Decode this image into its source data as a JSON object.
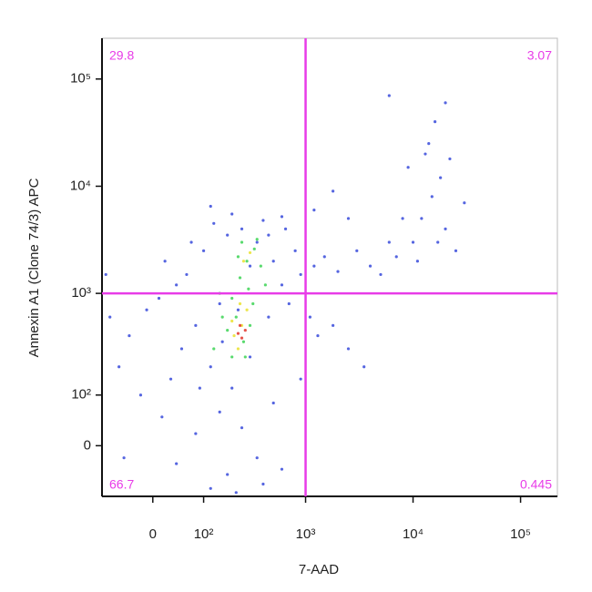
{
  "chart_data": {
    "type": "scatter",
    "x_label": "7-AAD",
    "y_label": "Annexin A1 (Clone 74/3) APC",
    "scale": "biexponential",
    "xlim": [
      -100,
      220000
    ],
    "ylim": [
      -100,
      240000
    ],
    "xticks": [
      0,
      {
        "value": 100,
        "label": "10²"
      },
      {
        "value": 1000,
        "label": "10³"
      },
      {
        "value": 10000,
        "label": "10⁴"
      },
      {
        "value": 100000,
        "label": "10⁵"
      }
    ],
    "yticks": [
      0,
      {
        "value": 100,
        "label": "10²"
      },
      {
        "value": 1000,
        "label": "10³"
      },
      {
        "value": 10000,
        "label": "10⁴"
      },
      {
        "value": 100000,
        "label": "10⁵"
      }
    ],
    "gates": {
      "x": 1000,
      "y": 1000,
      "color": "#e83ce8"
    },
    "quadrants": {
      "top_left": 29.8,
      "top_right": 3.07,
      "bottom_left": 66.7,
      "bottom_right": 0.445
    },
    "series": [
      {
        "color": "#2a3fd8",
        "x": [
          50,
          80,
          120,
          150,
          30,
          -40,
          -80,
          10,
          60,
          100,
          180,
          250,
          350,
          500,
          600,
          700,
          450,
          300,
          200,
          150,
          250,
          350,
          180,
          120,
          80,
          40,
          -20,
          -60,
          -90,
          20,
          70,
          130,
          400,
          650,
          800,
          900,
          1200,
          1500,
          2000,
          3000,
          4000,
          5000,
          6000,
          1100,
          1300,
          1800,
          2500,
          3500,
          900,
          500,
          600,
          400,
          220,
          300,
          450,
          230,
          160,
          90,
          15,
          -50,
          -10,
          40,
          200,
          120,
          600,
          10000,
          12000,
          15000,
          20000,
          25000,
          18000,
          9000,
          14000,
          16000,
          20000,
          7000,
          30000,
          11000,
          13000,
          8000,
          22000,
          17000,
          6000,
          1200,
          2500,
          1800
        ],
        "values": [
          300,
          500,
          200,
          800,
          150,
          400,
          600,
          900,
          1500,
          2500,
          3500,
          4000,
          3000,
          2000,
          1200,
          800,
          600,
          250,
          120,
          60,
          30,
          -20,
          -50,
          -80,
          20,
          -30,
          100,
          200,
          1500,
          2000,
          3000,
          4500,
          4800,
          4000,
          2500,
          1500,
          1800,
          2200,
          1600,
          2500,
          1800,
          1500,
          3000,
          600,
          400,
          500,
          300,
          200,
          150,
          80,
          -40,
          -70,
          -90,
          1800,
          3500,
          700,
          350,
          120,
          50,
          -20,
          700,
          1200,
          5500,
          6500,
          5200,
          3000,
          5000,
          8000,
          4000,
          2500,
          12000,
          15000,
          25000,
          40000,
          60000,
          2200,
          7000,
          2000,
          20000,
          5000,
          18000,
          3000,
          70000,
          6000,
          5000,
          9000
        ]
      },
      {
        "color": "#2fd14a",
        "x": [
          180,
          220,
          260,
          300,
          200,
          240,
          280,
          330,
          250,
          380,
          150,
          320,
          200,
          160,
          290,
          350,
          270,
          420,
          130,
          230
        ],
        "values": [
          450,
          600,
          350,
          500,
          900,
          1400,
          2000,
          2600,
          3000,
          1800,
          1000,
          800,
          250,
          600,
          1100,
          3200,
          250,
          1200,
          300,
          2200
        ]
      },
      {
        "color": "#e8e020",
        "x": [
          210,
          250,
          230,
          280,
          200,
          260,
          300,
          240
        ],
        "values": [
          400,
          500,
          300,
          700,
          550,
          2000,
          2400,
          800
        ]
      },
      {
        "color": "#e0281e",
        "x": [
          230,
          250,
          270,
          240
        ],
        "values": [
          420,
          380,
          450,
          500
        ]
      }
    ]
  }
}
